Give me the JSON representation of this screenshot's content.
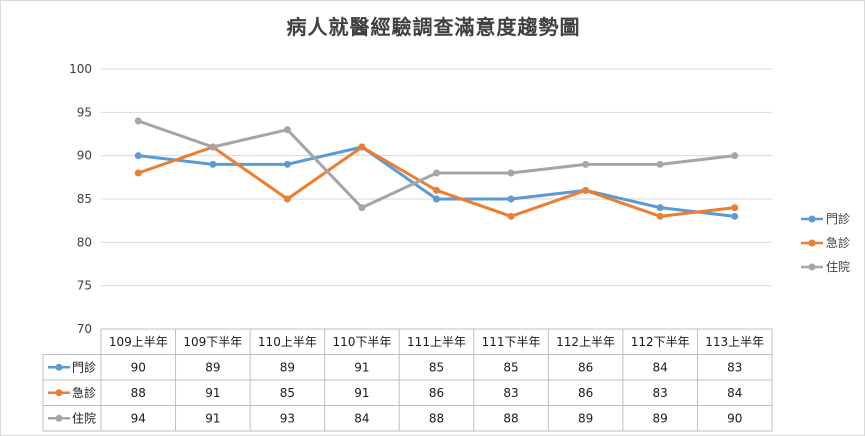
{
  "chart_data": {
    "type": "line",
    "title": "病人就醫經驗調查滿意度趨勢圖",
    "categories": [
      "109上半年",
      "109下半年",
      "110上半年",
      "110下半年",
      "111上半年",
      "111下半年",
      "112上半年",
      "112下半年",
      "113上半年"
    ],
    "series": [
      {
        "name": "門診",
        "color": "#5b9bd5",
        "values": [
          90,
          89,
          89,
          91,
          85,
          85,
          86,
          84,
          83
        ]
      },
      {
        "name": "急診",
        "color": "#ed7d31",
        "values": [
          88,
          91,
          85,
          91,
          86,
          83,
          86,
          83,
          84
        ]
      },
      {
        "name": "住院",
        "color": "#a5a5a5",
        "values": [
          94,
          91,
          93,
          84,
          88,
          88,
          89,
          89,
          90
        ]
      }
    ],
    "ylim": [
      70,
      100
    ],
    "yticks": [
      70,
      75,
      80,
      85,
      90,
      95,
      100
    ],
    "grid": true,
    "legend": "right",
    "data_table": true
  }
}
